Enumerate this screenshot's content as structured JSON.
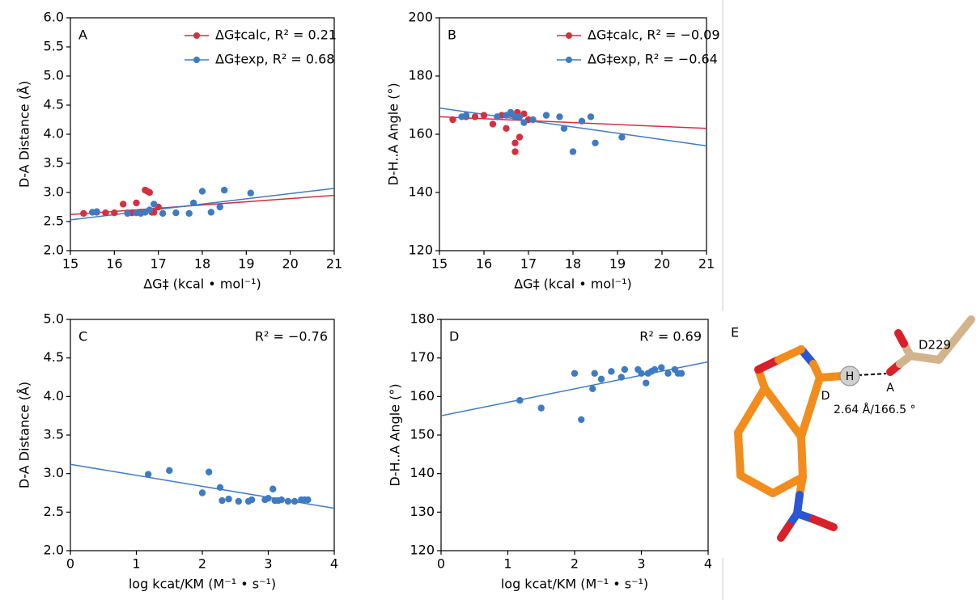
{
  "chart_data": [
    {
      "type": "scatter",
      "panel": "A",
      "xlabel": "ΔG‡ (kcal • mol⁻¹)",
      "ylabel": "D-A Distance (Å)",
      "xlim": [
        15,
        21
      ],
      "xticks": [
        15,
        16,
        17,
        18,
        19,
        20,
        21
      ],
      "ylim": [
        2,
        6
      ],
      "yticks": [
        {
          "value": 2,
          "label": "2.0"
        },
        2.5,
        {
          "value": 3,
          "label": "3.0"
        },
        3.5,
        {
          "value": 4,
          "label": "4.0"
        },
        4.5,
        {
          "value": 5,
          "label": "5.0"
        },
        5.5,
        {
          "value": 6,
          "label": "6.0"
        }
      ],
      "legend": "upper right",
      "series": [
        {
          "name": "ΔG‡calc, R² = 0.21",
          "color": "#d62f3f",
          "x": [
            15.3,
            15.6,
            15.8,
            16.0,
            16.2,
            16.5,
            16.7,
            16.8,
            16.6,
            16.9,
            17.0,
            16.3,
            16.4,
            16.75,
            16.85
          ],
          "values": [
            2.64,
            2.66,
            2.65,
            2.65,
            2.8,
            2.82,
            3.04,
            3.0,
            2.66,
            2.66,
            2.75,
            2.65,
            2.65,
            3.02,
            2.66
          ]
        },
        {
          "name": "ΔG‡exp, R² = 0.68",
          "color": "#3d7cc4",
          "x": [
            15.5,
            15.6,
            16.3,
            16.5,
            16.7,
            16.9,
            17.1,
            17.4,
            17.7,
            17.8,
            18.0,
            18.2,
            18.4,
            18.5,
            19.1,
            16.6,
            16.8
          ],
          "values": [
            2.66,
            2.67,
            2.64,
            2.65,
            2.66,
            2.8,
            2.64,
            2.65,
            2.64,
            2.82,
            3.02,
            2.66,
            2.75,
            3.04,
            2.99,
            2.64,
            2.7
          ]
        }
      ],
      "fit_lines": [
        {
          "color": "#d62f3f",
          "x": [
            15,
            21
          ],
          "y": [
            2.62,
            2.95
          ]
        },
        {
          "color": "#3d7cc4",
          "x": [
            15,
            21
          ],
          "y": [
            2.53,
            3.07
          ]
        }
      ]
    },
    {
      "type": "scatter",
      "panel": "B",
      "xlabel": "ΔG‡ (kcal • mol⁻¹)",
      "ylabel": "D-H..A Angle (°)",
      "xlim": [
        15,
        21
      ],
      "xticks": [
        15,
        16,
        17,
        18,
        19,
        20,
        21
      ],
      "ylim": [
        120,
        200
      ],
      "yticks": [
        120,
        140,
        160,
        180,
        200
      ],
      "legend": "upper right",
      "series": [
        {
          "name": "ΔG‡calc, R² = −0.09",
          "color": "#d62f3f",
          "x": [
            15.3,
            15.6,
            15.8,
            16.0,
            16.2,
            16.5,
            16.7,
            16.7,
            16.8,
            16.6,
            16.9,
            17.0,
            16.3,
            16.4,
            16.75
          ],
          "values": [
            165,
            166,
            166,
            166.5,
            163.5,
            162,
            154,
            157,
            159,
            167,
            167,
            165,
            166,
            166.5,
            167.5
          ]
        },
        {
          "name": "ΔG‡exp, R² = −0.64",
          "color": "#3d7cc4",
          "x": [
            15.5,
            15.6,
            16.3,
            16.5,
            16.7,
            16.9,
            17.1,
            17.4,
            17.7,
            17.8,
            18.0,
            18.2,
            18.4,
            18.5,
            19.1,
            16.6,
            16.8
          ],
          "values": [
            166,
            166.5,
            166,
            166.5,
            166,
            164,
            165,
            166.5,
            166,
            162,
            154,
            164.5,
            166,
            157,
            159,
            167.5,
            166
          ]
        }
      ],
      "fit_lines": [
        {
          "color": "#d62f3f",
          "x": [
            15,
            21
          ],
          "y": [
            166,
            162
          ]
        },
        {
          "color": "#3d7cc4",
          "x": [
            15,
            21
          ],
          "y": [
            169,
            156
          ]
        }
      ]
    },
    {
      "type": "scatter",
      "panel": "C",
      "xlabel": "log kcat/KM (M⁻¹ • s⁻¹)",
      "ylabel": "D-A Distance (Å)",
      "annotation": "R² = −0.76",
      "xlim": [
        0,
        4
      ],
      "xticks": [
        0,
        1,
        2,
        3,
        4
      ],
      "ylim": [
        2,
        5
      ],
      "yticks": [
        {
          "value": 2,
          "label": "2.0"
        },
        2.5,
        {
          "value": 3,
          "label": "3.0"
        },
        3.5,
        {
          "value": 4,
          "label": "4.0"
        },
        4.5,
        {
          "value": 5,
          "label": "5.0"
        }
      ],
      "series": [
        {
          "color": "#3d7cc4",
          "x": [
            1.18,
            1.5,
            2.0,
            2.1,
            2.27,
            2.3,
            2.4,
            2.55,
            2.7,
            2.75,
            2.95,
            3.0,
            3.07,
            3.1,
            3.15,
            3.2,
            3.3,
            3.4,
            3.5,
            3.55,
            3.6
          ],
          "values": [
            2.99,
            3.04,
            2.75,
            3.02,
            2.82,
            2.65,
            2.67,
            2.64,
            2.64,
            2.66,
            2.66,
            2.68,
            2.8,
            2.65,
            2.65,
            2.66,
            2.64,
            2.64,
            2.66,
            2.66,
            2.66
          ]
        }
      ],
      "fit_lines": [
        {
          "color": "#3d7cc4",
          "x": [
            0,
            4
          ],
          "y": [
            3.12,
            2.55
          ]
        }
      ]
    },
    {
      "type": "scatter",
      "panel": "D",
      "xlabel": "log kcat/KM (M⁻¹ • s⁻¹)",
      "ylabel": "D-H..A Angle (°)",
      "annotation": "R² = 0.69",
      "xlim": [
        0,
        4
      ],
      "xticks": [
        0,
        1,
        2,
        3,
        4
      ],
      "ylim": [
        120,
        180
      ],
      "yticks": [
        120,
        130,
        140,
        150,
        160,
        170,
        180
      ],
      "series": [
        {
          "color": "#3d7cc4",
          "x": [
            1.18,
            1.5,
            2.0,
            2.1,
            2.27,
            2.3,
            2.4,
            2.55,
            2.7,
            2.75,
            2.95,
            3.0,
            3.07,
            3.1,
            3.15,
            3.2,
            3.3,
            3.4,
            3.5,
            3.55,
            3.6
          ],
          "values": [
            159,
            157,
            166,
            154,
            162,
            166,
            164.5,
            166.5,
            165,
            167,
            167,
            166,
            163.5,
            166,
            166.5,
            167,
            167.5,
            166,
            167,
            166,
            166
          ]
        }
      ],
      "fit_lines": [
        {
          "color": "#3d7cc4",
          "x": [
            0,
            4
          ],
          "y": [
            155,
            169
          ]
        }
      ]
    }
  ],
  "diagram": {
    "panel": "E",
    "residue": "D229",
    "hydrogen": "H",
    "donor": "D",
    "acceptor": "A",
    "measurement": "2.64 Å/166.5 °"
  }
}
